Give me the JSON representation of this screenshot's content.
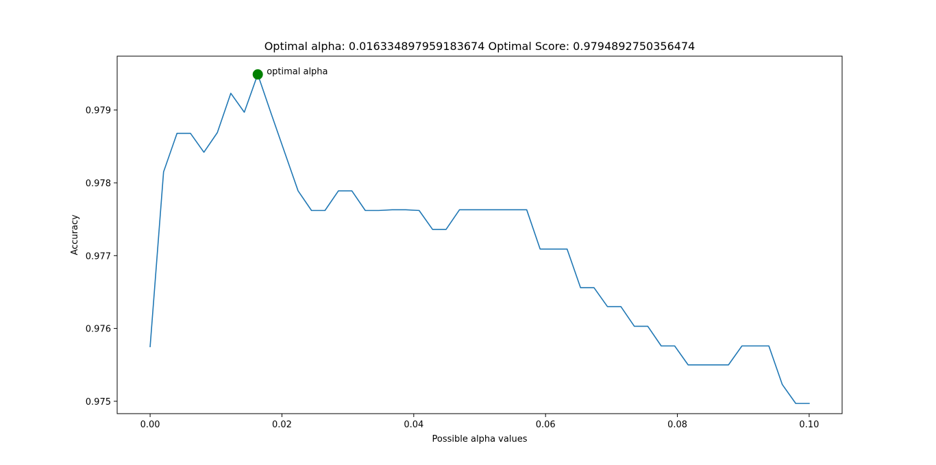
{
  "chart_data": {
    "type": "line",
    "title": "Optimal alpha: 0.016334897959183674 Optimal Score: 0.9794892750356474",
    "xlabel": "Possible alpha values",
    "ylabel": "Accuracy",
    "xlim": [
      -0.005,
      0.105
    ],
    "ylim": [
      0.97483,
      0.97974
    ],
    "x_ticks": [
      0.0,
      0.02,
      0.04,
      0.06,
      0.08,
      0.1
    ],
    "x_tick_labels": [
      "0.00",
      "0.02",
      "0.04",
      "0.06",
      "0.08",
      "0.10"
    ],
    "y_ticks": [
      0.975,
      0.976,
      0.977,
      0.978,
      0.979
    ],
    "y_tick_labels": [
      "0.975",
      "0.976",
      "0.977",
      "0.978",
      "0.979"
    ],
    "grid": false,
    "colors": {
      "line": "#1f77b4",
      "marker": "#008000"
    },
    "series": [
      {
        "x": [
          0.0,
          0.00204,
          0.00408,
          0.00612,
          0.00816,
          0.0102,
          0.01224,
          0.01429,
          0.01633,
          0.01837,
          0.02041,
          0.02245,
          0.02449,
          0.02653,
          0.02857,
          0.03061,
          0.03265,
          0.03469,
          0.03673,
          0.03878,
          0.04082,
          0.04286,
          0.0449,
          0.04694,
          0.04898,
          0.05102,
          0.05306,
          0.0551,
          0.05714,
          0.05918,
          0.06122,
          0.06327,
          0.06531,
          0.06735,
          0.06939,
          0.07143,
          0.07347,
          0.07551,
          0.07755,
          0.07959,
          0.08163,
          0.08367,
          0.08571,
          0.08776,
          0.0898,
          0.09184,
          0.09388,
          0.09592,
          0.09796,
          0.1
        ],
        "values": [
          0.97575,
          0.97815,
          0.97868,
          0.97868,
          0.97842,
          0.97869,
          0.97923,
          0.97897,
          0.97949,
          0.97895,
          0.97842,
          0.97789,
          0.97762,
          0.97762,
          0.97789,
          0.97789,
          0.97762,
          0.97762,
          0.97763,
          0.97763,
          0.97762,
          0.97736,
          0.97736,
          0.97763,
          0.97763,
          0.97763,
          0.97763,
          0.97763,
          0.97763,
          0.97709,
          0.97709,
          0.97709,
          0.97656,
          0.97656,
          0.9763,
          0.9763,
          0.97603,
          0.97603,
          0.97576,
          0.97576,
          0.9755,
          0.9755,
          0.9755,
          0.9755,
          0.97576,
          0.97576,
          0.97576,
          0.97523,
          0.97497,
          0.97497
        ]
      }
    ],
    "highlight": {
      "x": 0.016334897959183674,
      "y": 0.9794892750356474
    },
    "annotation": "optimal alpha"
  }
}
